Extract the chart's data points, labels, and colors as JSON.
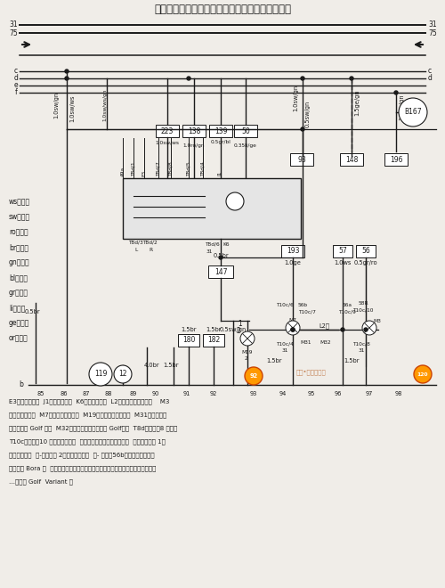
{
  "title": "警告灯开关、闪光继电器、右前大灯、右前转向灯",
  "bg_color": "#f0ede8",
  "line_color": "#1a1a1a",
  "legend": [
    "ws＝白色",
    "sw＝黑色",
    "ro＝红色",
    "br＝棕色",
    "gn＝绿色",
    "bl＝蓝色",
    "gr＝灰色",
    "li＝紫色",
    "ge＝黄色",
    "or＝橙色"
  ],
  "bottom_numbers": [
    "85",
    "86",
    "87",
    "88",
    "89",
    "90",
    "91",
    "92",
    "93",
    "94",
    "95",
    "96",
    "97",
    "98"
  ],
  "footnote_lines": [
    "E3－警告灯开关  J1－闪光继电器  K6－警告指示灯  L2－右大灯双丝灯泡＊    M3",
    "－右驻车灯灯泡  M7－右前转向灯灯泡  M19－右侧侧面转向灯泡  M31－右近光灯",
    "灯泡（仅指 Golf 车）  M32－右远光灯灯泡（仅指 Golf）车  T8d－插头，8 孔＊＊",
    "T10c－插头，10 孔，在右大灯上  ⑫－接地点，在发动机室左侧  ⑲－接地连接 1，",
    "在大灯线束内  ㉘-接地连接 2，在大灯线束内  ㊸- 连接（56b），在车内线束内",
    "＊－仅指 Bora 车  ＊＊－闪光继电器上号码可能与插头号码不同，见故障查寻程序",
    "…－仅指 Golf  Variant 车"
  ]
}
